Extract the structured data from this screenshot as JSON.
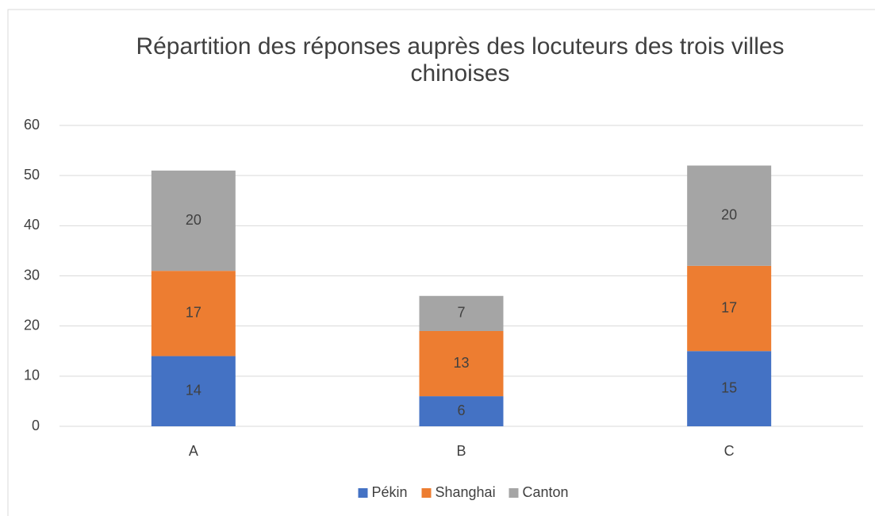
{
  "chart_data": {
    "type": "stacked_bar",
    "title": "Répartition des réponses auprès des locuteurs des trois villes chinoises",
    "categories": [
      "A",
      "B",
      "C"
    ],
    "series": [
      {
        "name": "Pékin",
        "color": "#4472c4",
        "values": [
          14,
          6,
          15
        ]
      },
      {
        "name": "Shanghai",
        "color": "#ed7d31",
        "values": [
          17,
          13,
          17
        ]
      },
      {
        "name": "Canton",
        "color": "#a5a5a5",
        "values": [
          20,
          7,
          20
        ]
      }
    ],
    "ylim": [
      0,
      60
    ],
    "yticks": [
      0,
      10,
      20,
      30,
      40,
      50,
      60
    ],
    "grid": true,
    "legend": "bottom"
  }
}
